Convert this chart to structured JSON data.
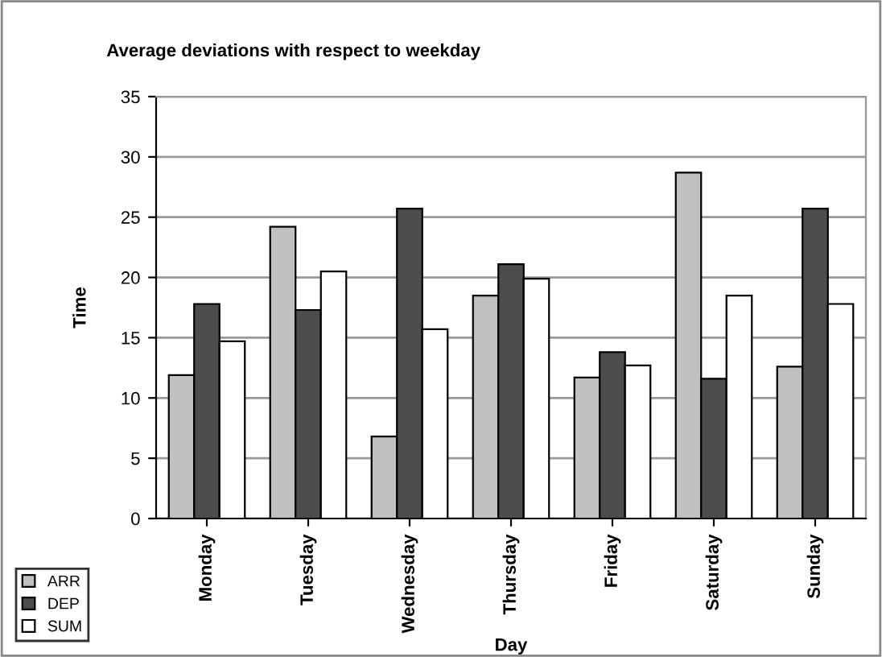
{
  "chart_data": {
    "type": "bar",
    "title": "Average deviations with respect to weekday",
    "xlabel": "Day",
    "ylabel": "Time",
    "categories": [
      "Monday",
      "Tuesday",
      "Wednesday",
      "Thursday",
      "Friday",
      "Saturday",
      "Sunday"
    ],
    "series": [
      {
        "name": "ARR",
        "color": "#c0c0c0",
        "values": [
          11.9,
          24.2,
          6.8,
          18.5,
          11.7,
          28.7,
          12.6
        ]
      },
      {
        "name": "DEP",
        "color": "#4d4d4d",
        "values": [
          17.8,
          17.3,
          25.7,
          21.1,
          13.8,
          11.6,
          25.7
        ]
      },
      {
        "name": "SUM",
        "color": "#ffffff",
        "values": [
          14.7,
          20.5,
          15.7,
          19.9,
          12.7,
          18.5,
          17.8
        ]
      }
    ],
    "ylim": [
      0,
      35
    ],
    "yticks": [
      0,
      5,
      10,
      15,
      20,
      25,
      30,
      35
    ],
    "grid": "y",
    "legend": "bottom left"
  }
}
